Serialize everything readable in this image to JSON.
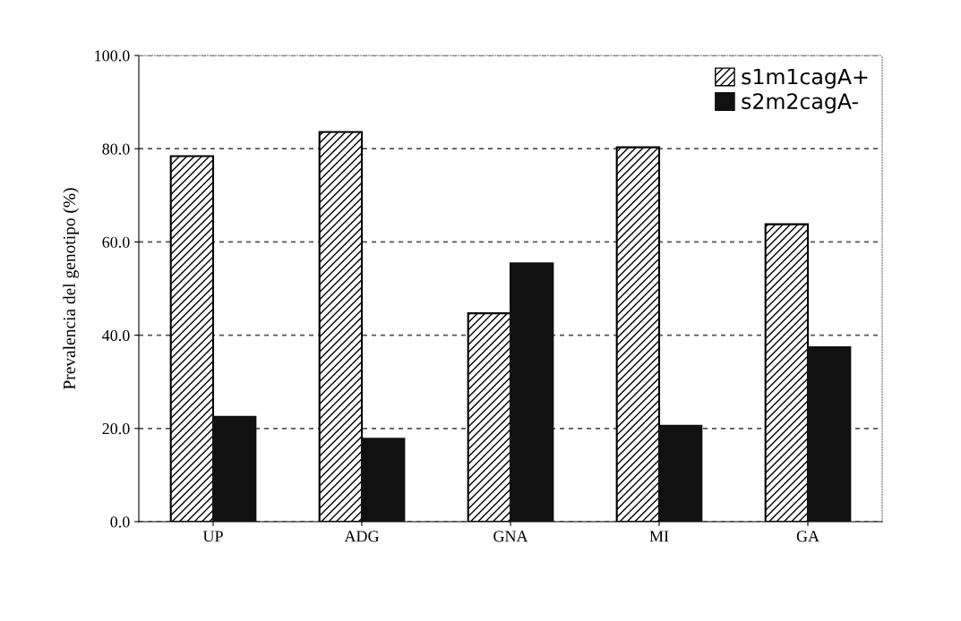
{
  "chart_data": {
    "type": "bar",
    "ylabel": "Prevalencia del genotipo (%)",
    "categories": [
      "UP",
      "ADG",
      "GNA",
      "MI",
      "GA"
    ],
    "series": [
      {
        "name": "s1m1cagA+",
        "color": "#000000",
        "values": [
          78.4,
          83.6,
          44.7,
          80.3,
          63.8
        ]
      },
      {
        "name": "s2m2cagA-",
        "color": "#111111",
        "values": [
          22.5,
          17.8,
          55.4,
          20.6,
          37.4
        ]
      }
    ],
    "ylim": [
      0,
      100
    ],
    "yticks": [
      {
        "value": 0,
        "label": "0.0"
      },
      {
        "value": 20,
        "label": "20.0"
      },
      {
        "value": 40,
        "label": "40.0"
      },
      {
        "value": 60,
        "label": "60.0"
      },
      {
        "value": 80,
        "label": "80.0"
      },
      {
        "value": 100,
        "label": "100.0"
      }
    ],
    "grid": "y",
    "legend": "top right"
  }
}
